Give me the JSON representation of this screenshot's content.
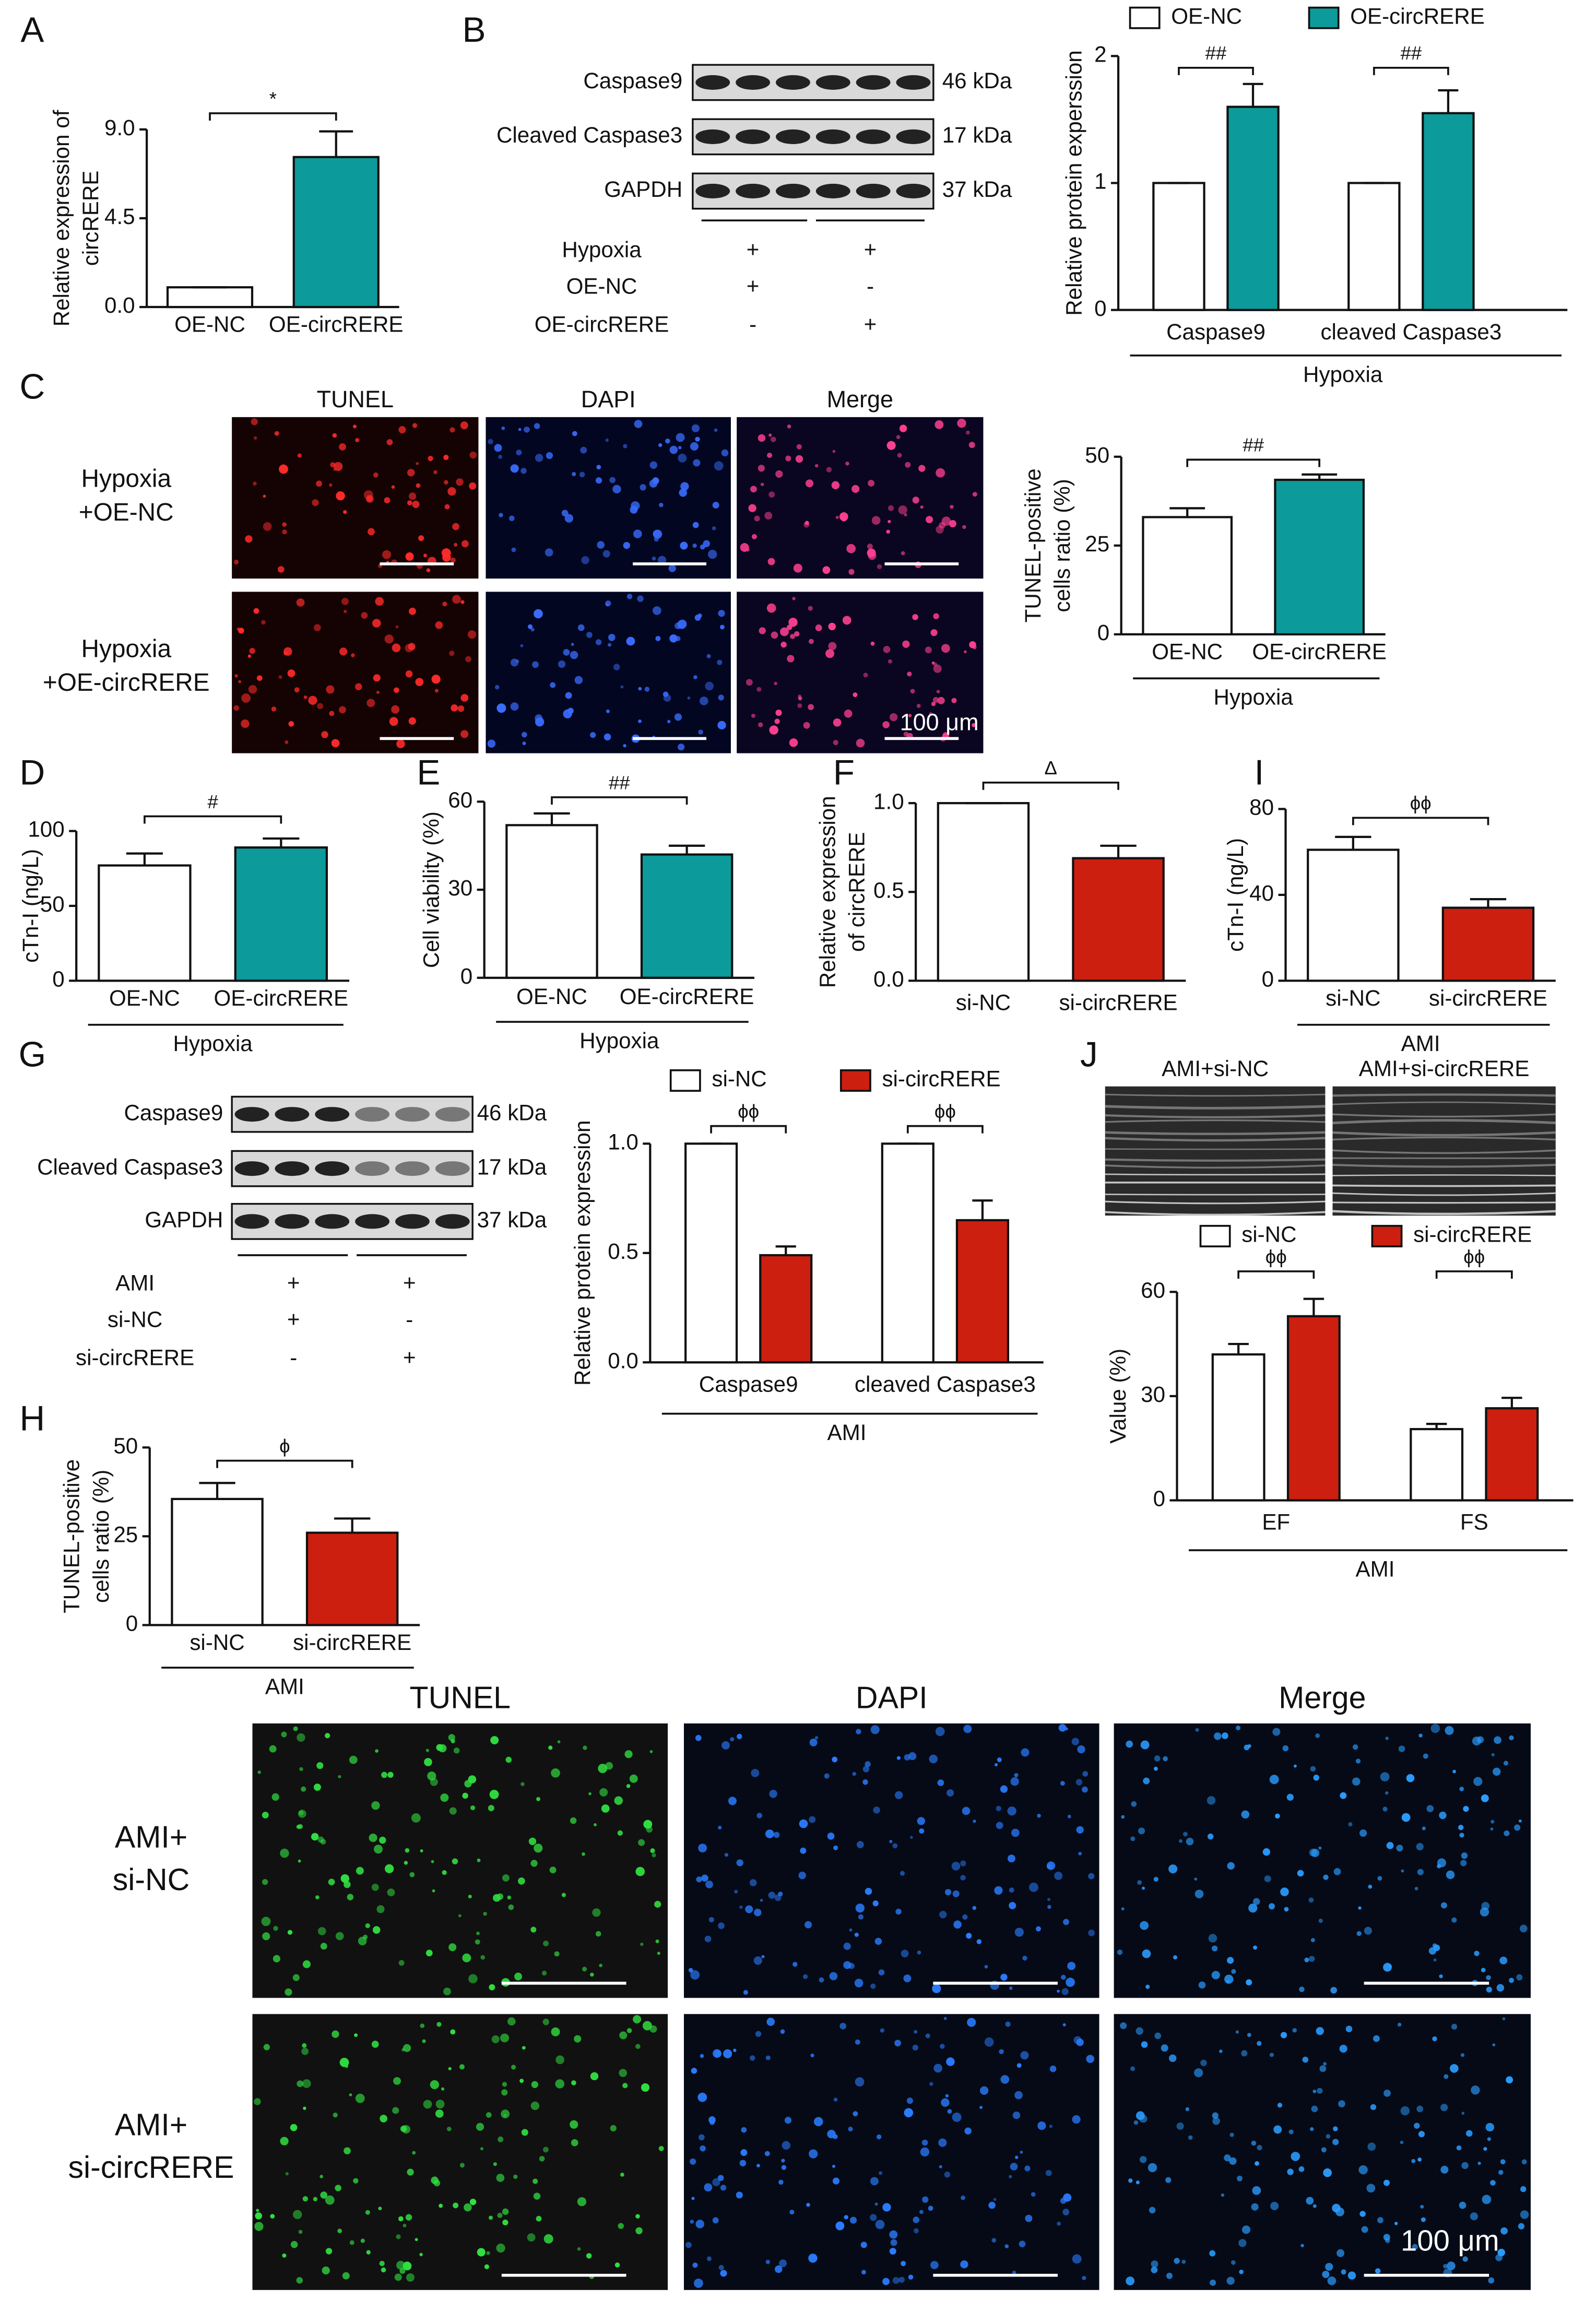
{
  "panel_letters": [
    "A",
    "B",
    "C",
    "D",
    "E",
    "F",
    "G",
    "H",
    "I",
    "J"
  ],
  "chart_data": [
    {
      "type": "bar",
      "ylabel": [
        "Relative expression of",
        "circRERE"
      ],
      "categories": [
        "OE-NC",
        "OE-circRERE"
      ],
      "values": [
        1.0,
        7.6
      ],
      "errors": [
        0,
        1.3
      ],
      "colors": [
        "#ffffff",
        "#0c9a9a"
      ],
      "ylim": [
        0,
        9
      ],
      "yticks": [
        {
          "value": 0,
          "label": "0.0"
        },
        4.5,
        {
          "value": 9,
          "label": "9.0"
        }
      ],
      "significance": "*"
    },
    {
      "type": "bar",
      "ylabel": [
        "Relative protein experssion"
      ],
      "categories": [
        "Caspase9",
        "cleaved Caspase3"
      ],
      "series": [
        {
          "name": "OE-NC",
          "color": "#ffffff",
          "values": [
            1,
            1
          ],
          "errors": [
            0,
            0
          ]
        },
        {
          "name": "OE-circRERE",
          "color": "#0c9a9a",
          "values": [
            1.6,
            1.55
          ],
          "errors": [
            0.18,
            0.18
          ]
        }
      ],
      "ylim": [
        0,
        2
      ],
      "yticks": [
        0,
        1,
        2
      ],
      "significance": "##",
      "group_label": "Hypoxia",
      "legend": "top"
    },
    {
      "type": "bar",
      "ylabel": [
        "TUNEL-positive",
        "cells ratio (%)"
      ],
      "categories": [
        "OE-NC",
        "OE-circRERE"
      ],
      "values": [
        33,
        43.5
      ],
      "errors": [
        2.5,
        1.5
      ],
      "colors": [
        "#ffffff",
        "#0c9a9a"
      ],
      "ylim": [
        0,
        50
      ],
      "yticks": [
        0,
        25,
        50
      ],
      "significance": "##",
      "group_label": "Hypoxia"
    },
    {
      "type": "bar",
      "ylabel": [
        "cTn-I (ng/L)"
      ],
      "categories": [
        "OE-NC",
        "OE-circRERE"
      ],
      "values": [
        77,
        89
      ],
      "errors": [
        8,
        6
      ],
      "colors": [
        "#ffffff",
        "#0c9a9a"
      ],
      "ylim": [
        0,
        100
      ],
      "yticks": [
        0,
        50,
        100
      ],
      "significance": "#",
      "group_label": "Hypoxia"
    },
    {
      "type": "bar",
      "ylabel": [
        "Cell viability (%)"
      ],
      "categories": [
        "OE-NC",
        "OE-circRERE"
      ],
      "values": [
        52,
        42
      ],
      "errors": [
        4,
        3
      ],
      "colors": [
        "#ffffff",
        "#0c9a9a"
      ],
      "ylim": [
        0,
        60
      ],
      "yticks": [
        0,
        30,
        60
      ],
      "significance": "##",
      "group_label": "Hypoxia"
    },
    {
      "type": "bar",
      "ylabel": [
        "Relative expression",
        "of circRERE"
      ],
      "categories": [
        "si-NC",
        "si-circRERE"
      ],
      "values": [
        1.0,
        0.69
      ],
      "errors": [
        0,
        0.07
      ],
      "colors": [
        "#ffffff",
        "#cc1f10"
      ],
      "ylim": [
        0,
        1
      ],
      "yticks": [
        {
          "value": 0,
          "label": "0.0"
        },
        0.5,
        {
          "value": 1,
          "label": "1.0"
        }
      ],
      "significance": "Δ"
    },
    {
      "type": "bar",
      "ylabel": [
        "cTn-I (ng/L)"
      ],
      "categories": [
        "si-NC",
        "si-circRERE"
      ],
      "values": [
        61,
        34
      ],
      "errors": [
        6,
        4
      ],
      "colors": [
        "#ffffff",
        "#cc1f10"
      ],
      "ylim": [
        0,
        80
      ],
      "yticks": [
        0,
        40,
        80
      ],
      "significance": "ϕϕ",
      "group_label": "AMI"
    },
    {
      "type": "bar",
      "ylabel": [
        "Relative protein expression"
      ],
      "categories": [
        "Caspase9",
        "cleaved Caspase3"
      ],
      "series": [
        {
          "name": "si-NC",
          "color": "#ffffff",
          "values": [
            1,
            1
          ],
          "errors": [
            0,
            0
          ]
        },
        {
          "name": "si-circRERE",
          "color": "#cc1f10",
          "values": [
            0.49,
            0.65
          ],
          "errors": [
            0.04,
            0.09
          ]
        }
      ],
      "ylim": [
        0,
        1
      ],
      "yticks": [
        {
          "value": 0,
          "label": "0.0"
        },
        0.5,
        {
          "value": 1,
          "label": "1.0"
        }
      ],
      "significance": "ϕϕ",
      "group_label": "AMI",
      "legend": "top"
    },
    {
      "type": "bar",
      "ylabel": [
        "Value (%)"
      ],
      "categories": [
        "EF",
        "FS"
      ],
      "series": [
        {
          "name": "si-NC",
          "color": "#ffffff",
          "values": [
            42,
            20.5
          ],
          "errors": [
            3,
            1.5
          ]
        },
        {
          "name": "si-circRERE",
          "color": "#cc1f10",
          "values": [
            53,
            26.5
          ],
          "errors": [
            5,
            3
          ]
        }
      ],
      "ylim": [
        0,
        60
      ],
      "yticks": [
        0,
        30,
        60
      ],
      "significance": "ϕϕ",
      "group_label": "AMI",
      "legend": "top"
    },
    {
      "type": "bar",
      "ylabel": [
        "TUNEL-positive",
        "cells ratio (%)"
      ],
      "categories": [
        "si-NC",
        "si-circRERE"
      ],
      "values": [
        35.5,
        26
      ],
      "errors": [
        4.5,
        4
      ],
      "colors": [
        "#ffffff",
        "#cc1f10"
      ],
      "ylim": [
        0,
        50
      ],
      "yticks": [
        0,
        25,
        50
      ],
      "significance": "ϕ",
      "group_label": "AMI"
    }
  ],
  "blots": [
    {
      "proteins": [
        {
          "name": "Caspase9",
          "size": "46 kDa"
        },
        {
          "name": "Cleaved Caspase3",
          "size": "17 kDa"
        },
        {
          "name": "GAPDH",
          "size": "37 kDa"
        }
      ],
      "treatments": [
        {
          "name": "Hypoxia",
          "marks": [
            "+",
            "+"
          ]
        },
        {
          "name": "OE-NC",
          "marks": [
            "+",
            "-"
          ]
        },
        {
          "name": "OE-circRERE",
          "marks": [
            "-",
            "+"
          ]
        }
      ]
    },
    {
      "proteins": [
        {
          "name": "Caspase9",
          "size": "46 kDa"
        },
        {
          "name": "Cleaved Caspase3",
          "size": "17 kDa"
        },
        {
          "name": "GAPDH",
          "size": "37 kDa"
        }
      ],
      "treatments": [
        {
          "name": "AMI",
          "marks": [
            "+",
            "+"
          ]
        },
        {
          "name": "si-NC",
          "marks": [
            "+",
            "-"
          ]
        },
        {
          "name": "si-circRERE",
          "marks": [
            "-",
            "+"
          ]
        }
      ]
    }
  ],
  "micrographs": [
    {
      "columns": [
        "TUNEL",
        "DAPI",
        "Merge"
      ],
      "rows": [
        [
          "Hypoxia",
          "+OE-NC"
        ],
        [
          "Hypoxia",
          "+OE-circRERE"
        ]
      ],
      "scale": "100 μm"
    },
    {
      "columns": [
        "TUNEL",
        "DAPI",
        "Merge"
      ],
      "rows": [
        [
          "AMI+",
          "si-NC"
        ],
        [
          "AMI+",
          "si-circRERE"
        ]
      ],
      "scale": "100 μm"
    }
  ],
  "echo": {
    "columns": [
      "AMI+si-NC",
      "AMI+si-circRERE"
    ]
  }
}
